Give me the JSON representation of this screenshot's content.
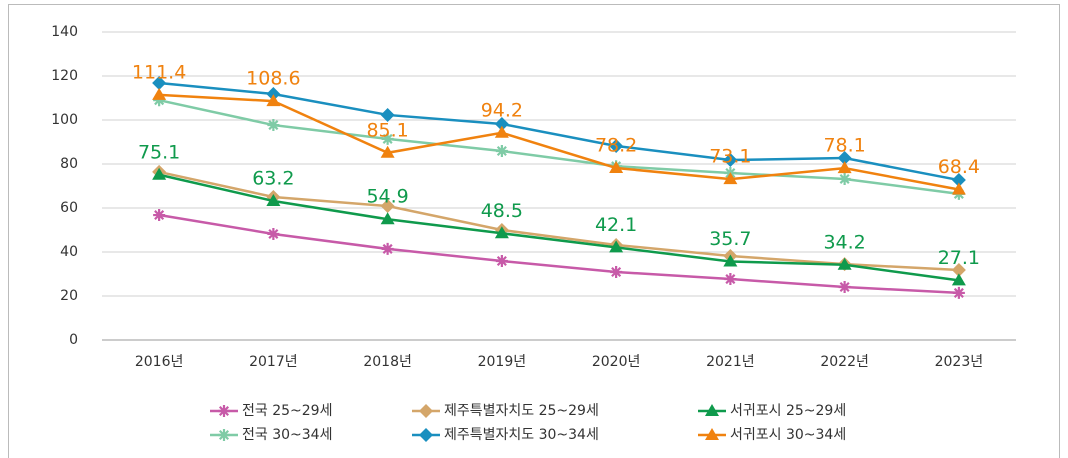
{
  "chart_data": {
    "type": "line",
    "categories": [
      "2016년",
      "2017년",
      "2018년",
      "2019년",
      "2020년",
      "2021년",
      "2022년",
      "2023년"
    ],
    "ylim": [
      0,
      140
    ],
    "yticks": [
      0,
      20,
      40,
      60,
      80,
      100,
      120,
      140
    ],
    "grid": true,
    "series": [
      {
        "name": "전국 25~29세",
        "color": "#c75aa8",
        "marker": "asterisk",
        "values": [
          56.8,
          48.2,
          41.4,
          35.9,
          30.9,
          27.7,
          24.1,
          21.4
        ]
      },
      {
        "name": "제주특별자치도 25~29세",
        "color": "#d4a66a",
        "marker": "diamond",
        "values": [
          76.4,
          65,
          60.9,
          50,
          43.2,
          38.2,
          34.5,
          31.8
        ]
      },
      {
        "name": "서귀포시 25~29세",
        "color": "#0f9a4c",
        "marker": "triangle",
        "show_labels": true,
        "values": [
          75.1,
          63.2,
          54.9,
          48.5,
          42.1,
          35.7,
          34.2,
          27.1
        ]
      },
      {
        "name": "전국 30~34세",
        "color": "#7fcba6",
        "marker": "asterisk",
        "values": [
          109,
          97.7,
          91.4,
          85.9,
          79,
          75.9,
          73.2,
          66.4
        ]
      },
      {
        "name": "제주특별자치도 30~34세",
        "color": "#1a8fbf",
        "marker": "diamond",
        "values": [
          116.8,
          111.8,
          102.3,
          98.2,
          88.2,
          81.8,
          82.7,
          72.7
        ]
      },
      {
        "name": "서귀포시 30~34세",
        "color": "#f0820f",
        "marker": "triangle",
        "show_labels": true,
        "values": [
          111.4,
          108.6,
          85.1,
          94.2,
          78.2,
          73.1,
          78.1,
          68.4
        ]
      }
    ]
  }
}
